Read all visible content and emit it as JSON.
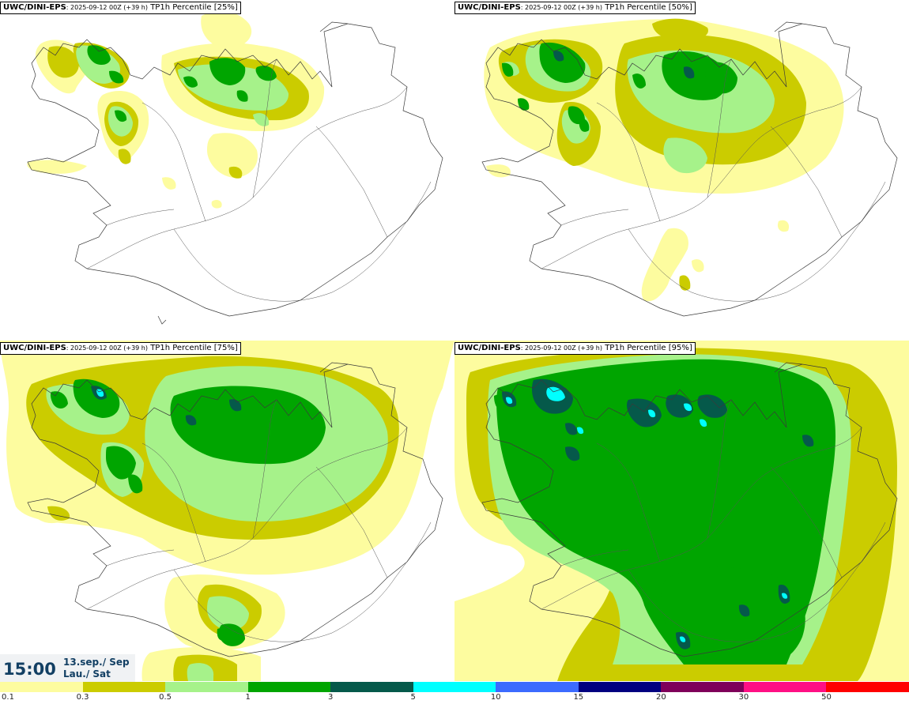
{
  "panels": [
    {
      "model": "UWC/DINI-EPS",
      "run": "2025-09-12 00Z (+39 h)",
      "label": "TP1h Percentile [25%]"
    },
    {
      "model": "UWC/DINI-EPS",
      "run": "2025-09-12 00Z (+39 h)",
      "label": "TP1h Percentile [50%]"
    },
    {
      "model": "UWC/DINI-EPS",
      "run": "2025-09-12 00Z (+39 h)",
      "label": "TP1h Percentile [75%]"
    },
    {
      "model": "UWC/DINI-EPS",
      "run": "2025-09-12 00Z (+39 h)",
      "label": "TP1h Percentile [95%]"
    }
  ],
  "valid_time": {
    "time": "15:00",
    "date": "13.sep./ Sep",
    "weekday": "Lau./ Sat"
  },
  "legend": {
    "labels": [
      "0.1",
      "0.3",
      "0.5",
      "1",
      "3",
      "5",
      "10",
      "15",
      "20",
      "30",
      "50"
    ],
    "colors": [
      "#fdfc9f",
      "#cbcc00",
      "#a6f28a",
      "#00a500",
      "#05594a",
      "#00ffff",
      "#3c6bff",
      "#010080",
      "#7f005a",
      "#ff0f84",
      "#ff0000"
    ]
  },
  "colors": {
    "level_01": "#fdfc9f",
    "level_03": "#cbcc00",
    "level_05": "#a6f28a",
    "level_1": "#00a500",
    "level_3": "#05594a",
    "level_5": "#00ffff",
    "coast_line": "#3a3a3a",
    "road_line": "#555555",
    "time_text": "#123f63"
  }
}
